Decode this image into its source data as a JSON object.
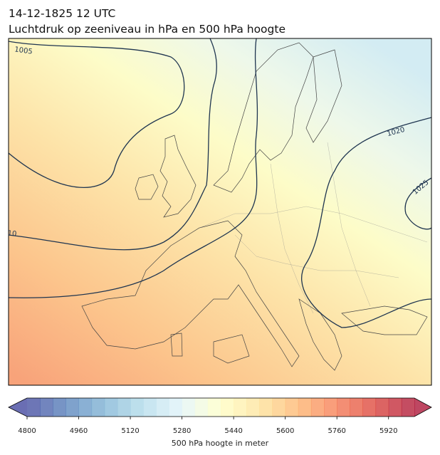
{
  "header": {
    "title_lines": [
      "14-12-1825 12 UTC",
      "Luchtdruk op zeeniveau in hPa en 500 hPa hoogte"
    ]
  },
  "map": {
    "isobar_labels": [
      "1005",
      "1020",
      "1025",
      "10"
    ]
  },
  "colorbar": {
    "range": [
      4800,
      6000
    ],
    "step": 40,
    "ticks": [
      4800,
      4960,
      5120,
      5280,
      5440,
      5600,
      5760,
      5920
    ],
    "label": "500 hPa hoogte in meter",
    "colors": [
      "#313695",
      "#4575b4",
      "#74add1",
      "#abd9e9",
      "#e0f3f8",
      "#ffffbf",
      "#fee090",
      "#fdae61",
      "#f46d43",
      "#d73027",
      "#a50026"
    ]
  }
}
